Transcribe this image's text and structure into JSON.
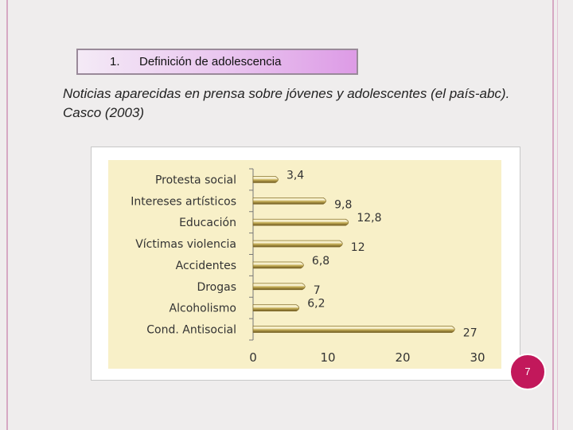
{
  "heading": {
    "number": "1.",
    "text": "Definición de adolescencia"
  },
  "caption": "Noticias aparecidas en prensa sobre jóvenes y adolescentes (el país-abc). Casco (2003)",
  "page_number": "7",
  "colors": {
    "accent": "#c2185b",
    "bar": "#c9b25a",
    "plot_background": "#f8f0c8",
    "heading_box": "#dd9be6"
  },
  "chart_data": {
    "type": "bar",
    "orientation": "horizontal",
    "categories": [
      "Protesta social",
      "Intereses artísticos",
      "Educación",
      "Víctimas violencia",
      "Accidentes",
      "Drogas",
      "Alcoholismo",
      "Cond. Antisocial"
    ],
    "values": [
      3.4,
      9.8,
      12.8,
      12,
      6.8,
      7,
      6.2,
      27
    ],
    "value_labels": [
      "3,4",
      "9,8",
      "12,8",
      "12",
      "6,8",
      "7",
      "6,2",
      "27"
    ],
    "xlim": [
      0,
      30
    ],
    "x_ticks": [
      0,
      10,
      20,
      30
    ],
    "x_tick_labels": [
      "0",
      "10",
      "20",
      "30"
    ],
    "title": "",
    "xlabel": "",
    "ylabel": "",
    "grid": false,
    "legend": "none"
  }
}
